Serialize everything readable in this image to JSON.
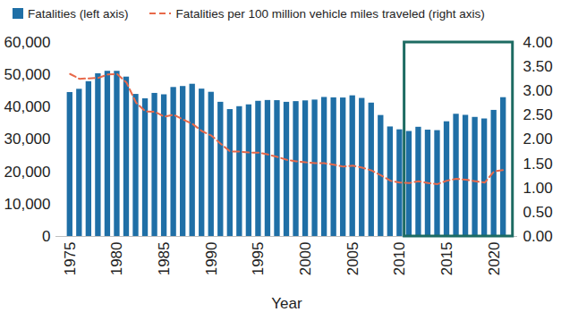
{
  "chart_data": {
    "type": "bar",
    "x_label": "Year",
    "x": [
      1975,
      1976,
      1977,
      1978,
      1979,
      1980,
      1981,
      1982,
      1983,
      1984,
      1985,
      1986,
      1987,
      1988,
      1989,
      1990,
      1991,
      1992,
      1993,
      1994,
      1995,
      1996,
      1997,
      1998,
      1999,
      2000,
      2001,
      2002,
      2003,
      2004,
      2005,
      2006,
      2007,
      2008,
      2009,
      2010,
      2011,
      2012,
      2013,
      2014,
      2015,
      2016,
      2017,
      2018,
      2019,
      2020,
      2021
    ],
    "series": [
      {
        "name": "Fatalities (left axis)",
        "type": "bar",
        "color": "#1f6fa6",
        "values": [
          44525,
          45523,
          47878,
          50331,
          51093,
          51091,
          49301,
          43945,
          42589,
          44257,
          43825,
          46087,
          46390,
          47087,
          45582,
          44599,
          41508,
          39250,
          40150,
          40716,
          41817,
          42065,
          42013,
          41501,
          41717,
          41945,
          42196,
          43005,
          42884,
          42836,
          43510,
          42708,
          41259,
          37423,
          33883,
          32999,
          32479,
          33782,
          32893,
          32744,
          35484,
          37806,
          37473,
          36835,
          36355,
          39007,
          42939
        ]
      },
      {
        "name": "Fatalities per 100 million vehicle miles traveled (right axis)",
        "type": "line",
        "axis": "y2",
        "color": "#e8694a",
        "line_style": "dashed",
        "values": [
          3.35,
          3.25,
          3.26,
          3.27,
          3.34,
          3.35,
          3.17,
          2.76,
          2.58,
          2.57,
          2.47,
          2.51,
          2.41,
          2.32,
          2.17,
          2.08,
          1.91,
          1.75,
          1.75,
          1.73,
          1.73,
          1.69,
          1.64,
          1.58,
          1.55,
          1.53,
          1.51,
          1.51,
          1.48,
          1.44,
          1.46,
          1.42,
          1.36,
          1.26,
          1.15,
          1.11,
          1.1,
          1.14,
          1.1,
          1.08,
          1.15,
          1.19,
          1.17,
          1.14,
          1.11,
          1.34,
          1.37
        ]
      }
    ],
    "xlim": [
      1973.5,
      2022.5
    ],
    "xticks": [
      1975,
      1980,
      1985,
      1990,
      1995,
      2000,
      2005,
      2010,
      2015,
      2020
    ],
    "ylim": [
      0,
      60000
    ],
    "yticks": [
      0,
      {
        "value": 10000,
        "label": "10,000"
      },
      {
        "value": 20000,
        "label": "20,000"
      },
      {
        "value": 30000,
        "label": "30,000"
      },
      {
        "value": 40000,
        "label": "40,000"
      },
      {
        "value": 50000,
        "label": "50,000"
      },
      {
        "value": 60000,
        "label": "60,000"
      }
    ],
    "y2lim": [
      0,
      4
    ],
    "y2ticks": [
      {
        "value": 0,
        "label": "0.00"
      },
      {
        "value": 0.5,
        "label": "0.50"
      },
      {
        "value": 1,
        "label": "1.00"
      },
      {
        "value": 1.5,
        "label": "1.50"
      },
      {
        "value": 2,
        "label": "2.00"
      },
      {
        "value": 2.5,
        "label": "2.50"
      },
      {
        "value": 3,
        "label": "3.00"
      },
      {
        "value": 3.5,
        "label": "3.50"
      },
      {
        "value": 4,
        "label": "4.00"
      }
    ],
    "highlight_range": [
      2010.5,
      2022
    ],
    "legend": "top",
    "grid": false
  }
}
